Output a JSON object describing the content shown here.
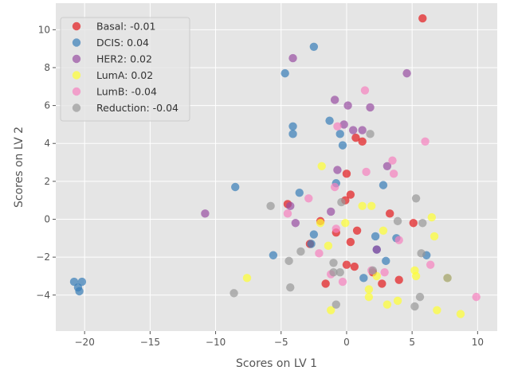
{
  "chart_data": {
    "type": "scatter",
    "xlabel": "Scores on LV 1",
    "ylabel": "Scores on LV 2",
    "xlim": [
      -22.2,
      11.5
    ],
    "ylim": [
      -5.9,
      11.4
    ],
    "xticks": [
      -20,
      -15,
      -10,
      -5,
      0,
      5,
      10
    ],
    "xtick_labels": [
      "−20",
      "−15",
      "−10",
      "−5",
      "0",
      "5",
      "10"
    ],
    "yticks": [
      -4,
      -2,
      0,
      2,
      4,
      6,
      8,
      10
    ],
    "ytick_labels": [
      "−4",
      "−2",
      "0",
      "2",
      "4",
      "6",
      "8",
      "10"
    ],
    "grid": true,
    "background": "#e5e5e5",
    "legend_position": "top-left",
    "series": [
      {
        "name": "Basal: -0.01",
        "color": "#e41a1c",
        "points": [
          [
            5.8,
            10.6
          ],
          [
            -4.5,
            0.8
          ],
          [
            -2.0,
            -0.1
          ],
          [
            -1.6,
            -3.4
          ],
          [
            -0.8,
            -0.7
          ],
          [
            -0.1,
            1.0
          ],
          [
            0.0,
            2.4
          ],
          [
            0.3,
            1.3
          ],
          [
            0.7,
            4.3
          ],
          [
            1.2,
            4.1
          ],
          [
            0.3,
            -1.2
          ],
          [
            0.8,
            -0.6
          ],
          [
            0.0,
            -2.4
          ],
          [
            0.6,
            -2.5
          ],
          [
            -2.8,
            -1.3
          ],
          [
            2.0,
            -2.8
          ],
          [
            2.7,
            -3.4
          ],
          [
            3.3,
            0.3
          ],
          [
            4.0,
            -3.2
          ],
          [
            5.1,
            -0.2
          ]
        ]
      },
      {
        "name": "DCIS: 0.04",
        "color": "#377eb8",
        "points": [
          [
            -20.8,
            -3.3
          ],
          [
            -20.5,
            -3.6
          ],
          [
            -20.4,
            -3.8
          ],
          [
            -20.2,
            -3.3
          ],
          [
            -8.5,
            1.7
          ],
          [
            -4.7,
            7.7
          ],
          [
            -2.5,
            9.1
          ],
          [
            -4.1,
            4.9
          ],
          [
            -4.1,
            4.5
          ],
          [
            -3.6,
            1.4
          ],
          [
            -5.6,
            -1.9
          ],
          [
            -2.7,
            -1.3
          ],
          [
            -2.5,
            -0.8
          ],
          [
            -1.3,
            5.2
          ],
          [
            -0.8,
            1.9
          ],
          [
            -0.5,
            4.5
          ],
          [
            -0.3,
            3.9
          ],
          [
            1.3,
            -3.1
          ],
          [
            2.2,
            -0.9
          ],
          [
            2.3,
            -1.6
          ],
          [
            2.8,
            1.8
          ],
          [
            3.0,
            -2.2
          ],
          [
            3.8,
            -1.0
          ],
          [
            6.1,
            -1.9
          ]
        ]
      },
      {
        "name": "HER2: 0.02",
        "color": "#984ea3",
        "points": [
          [
            -10.8,
            0.3
          ],
          [
            -4.1,
            8.5
          ],
          [
            -4.3,
            0.7
          ],
          [
            -3.9,
            -0.2
          ],
          [
            -1.2,
            0.4
          ],
          [
            -0.9,
            6.3
          ],
          [
            -0.7,
            2.6
          ],
          [
            -0.2,
            5.0
          ],
          [
            0.1,
            6.0
          ],
          [
            0.5,
            4.7
          ],
          [
            1.2,
            4.7
          ],
          [
            1.8,
            5.9
          ],
          [
            2.3,
            -1.6
          ],
          [
            3.1,
            2.8
          ],
          [
            4.6,
            7.7
          ]
        ]
      },
      {
        "name": "LumA: 0.02",
        "color": "#ffff33",
        "points": [
          [
            -7.6,
            -3.1
          ],
          [
            -1.9,
            2.8
          ],
          [
            -2.0,
            -0.2
          ],
          [
            -1.4,
            -1.4
          ],
          [
            -1.2,
            -4.8
          ],
          [
            -0.1,
            -0.2
          ],
          [
            1.2,
            0.7
          ],
          [
            1.9,
            0.7
          ],
          [
            1.7,
            -3.7
          ],
          [
            1.7,
            -4.1
          ],
          [
            2.3,
            -3.0
          ],
          [
            2.8,
            -0.6
          ],
          [
            3.1,
            -4.5
          ],
          [
            3.9,
            -4.3
          ],
          [
            5.2,
            -2.7
          ],
          [
            5.3,
            -3.0
          ],
          [
            6.5,
            0.1
          ],
          [
            6.7,
            -0.9
          ],
          [
            6.9,
            -4.8
          ],
          [
            7.7,
            -3.1
          ],
          [
            8.7,
            -5.0
          ]
        ]
      },
      {
        "name": "LumB: -0.04",
        "color": "#f781bf",
        "points": [
          [
            -4.5,
            0.3
          ],
          [
            -2.9,
            1.1
          ],
          [
            -2.1,
            -1.8
          ],
          [
            -1.2,
            -2.9
          ],
          [
            -0.7,
            4.9
          ],
          [
            -0.9,
            1.7
          ],
          [
            -0.8,
            -0.5
          ],
          [
            -0.3,
            -3.3
          ],
          [
            1.4,
            6.8
          ],
          [
            1.5,
            2.5
          ],
          [
            1.9,
            -2.7
          ],
          [
            2.9,
            -2.8
          ],
          [
            3.5,
            3.1
          ],
          [
            3.6,
            2.4
          ],
          [
            4.0,
            -1.1
          ],
          [
            6.0,
            4.1
          ],
          [
            6.4,
            -2.4
          ],
          [
            9.9,
            -4.1
          ]
        ]
      },
      {
        "name": "Reduction: -0.04",
        "color": "#999999",
        "points": [
          [
            -8.6,
            -3.9
          ],
          [
            -5.8,
            0.7
          ],
          [
            -4.4,
            -2.2
          ],
          [
            -4.3,
            -3.6
          ],
          [
            -3.5,
            -1.7
          ],
          [
            -1.0,
            -2.3
          ],
          [
            -1.0,
            -2.8
          ],
          [
            -0.8,
            -4.5
          ],
          [
            -0.5,
            -2.8
          ],
          [
            -0.4,
            0.9
          ],
          [
            1.8,
            4.5
          ],
          [
            2.0,
            -2.7
          ],
          [
            3.9,
            -0.1
          ],
          [
            5.3,
            1.1
          ],
          [
            5.2,
            -4.6
          ],
          [
            5.7,
            -1.8
          ],
          [
            5.6,
            -4.1
          ],
          [
            5.8,
            -0.2
          ],
          [
            7.7,
            -3.1
          ]
        ]
      }
    ]
  }
}
